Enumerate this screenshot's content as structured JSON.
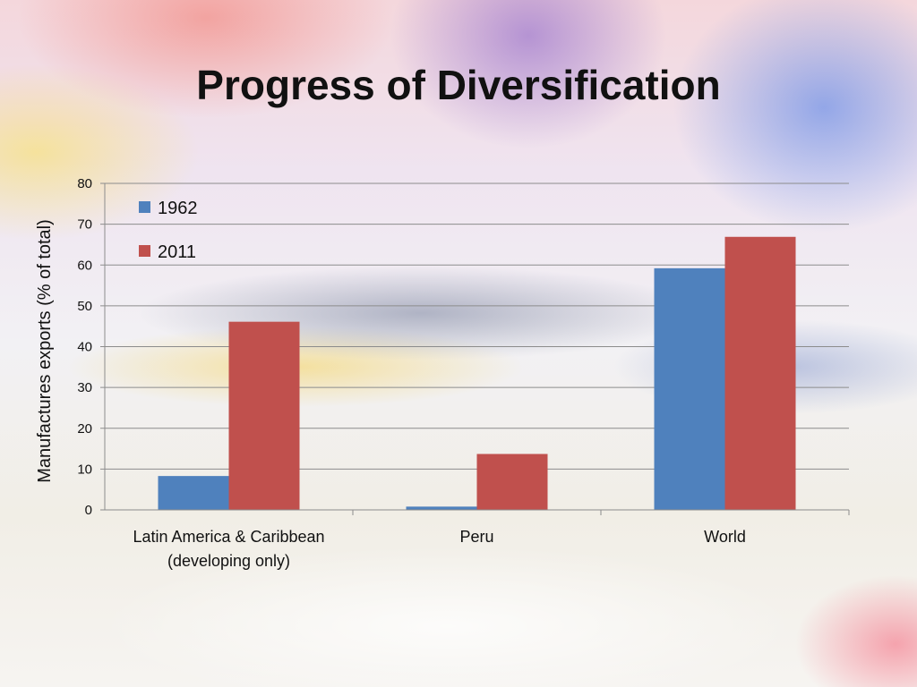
{
  "slide": {
    "title": "Progress of Diversification"
  },
  "chart_data": {
    "type": "bar",
    "title": "",
    "xlabel": "",
    "ylabel": "Manufactures exports (% of total)",
    "ylim": [
      0,
      80
    ],
    "yticks": [
      0,
      10,
      20,
      30,
      40,
      50,
      60,
      70,
      80
    ],
    "grid": true,
    "legend": "top-left",
    "categories": [
      [
        "Latin America & Caribbean",
        "(developing only)"
      ],
      [
        "Peru"
      ],
      [
        "World"
      ]
    ],
    "series": [
      {
        "name": "1962",
        "color": "#4f81bd",
        "values": [
          8.3,
          0.8,
          59.2
        ]
      },
      {
        "name": "2011",
        "color": "#c0504d",
        "values": [
          46.1,
          13.7,
          66.9
        ]
      }
    ]
  }
}
